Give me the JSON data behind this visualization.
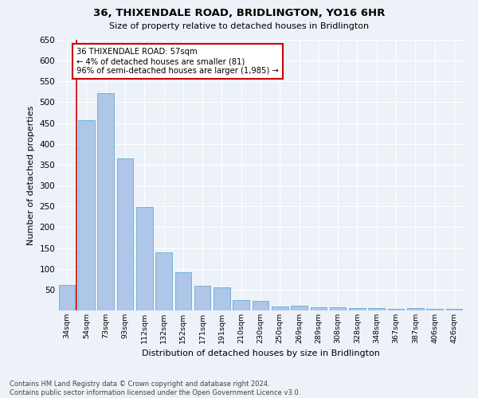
{
  "title": "36, THIXENDALE ROAD, BRIDLINGTON, YO16 6HR",
  "subtitle": "Size of property relative to detached houses in Bridlington",
  "xlabel": "Distribution of detached houses by size in Bridlington",
  "ylabel": "Number of detached properties",
  "categories": [
    "34sqm",
    "54sqm",
    "73sqm",
    "93sqm",
    "112sqm",
    "132sqm",
    "152sqm",
    "171sqm",
    "191sqm",
    "210sqm",
    "230sqm",
    "250sqm",
    "269sqm",
    "289sqm",
    "308sqm",
    "328sqm",
    "348sqm",
    "367sqm",
    "387sqm",
    "406sqm",
    "426sqm"
  ],
  "values": [
    62,
    457,
    521,
    365,
    248,
    140,
    92,
    60,
    55,
    25,
    23,
    10,
    12,
    8,
    7,
    6,
    5,
    4,
    5,
    4,
    4
  ],
  "bar_color": "#aec6e8",
  "bar_edge_color": "#6aaad4",
  "annotation_text_line1": "36 THIXENDALE ROAD: 57sqm",
  "annotation_text_line2": "← 4% of detached houses are smaller (81)",
  "annotation_text_line3": "96% of semi-detached houses are larger (1,985) →",
  "annotation_box_facecolor": "#ffffff",
  "annotation_box_edgecolor": "#cc0000",
  "vline_color": "#cc0000",
  "background_color": "#edf2f9",
  "grid_color": "#ffffff",
  "footer_line1": "Contains HM Land Registry data © Crown copyright and database right 2024.",
  "footer_line2": "Contains public sector information licensed under the Open Government Licence v3.0.",
  "ylim": [
    0,
    650
  ],
  "yticks": [
    0,
    50,
    100,
    150,
    200,
    250,
    300,
    350,
    400,
    450,
    500,
    550,
    600,
    650
  ]
}
